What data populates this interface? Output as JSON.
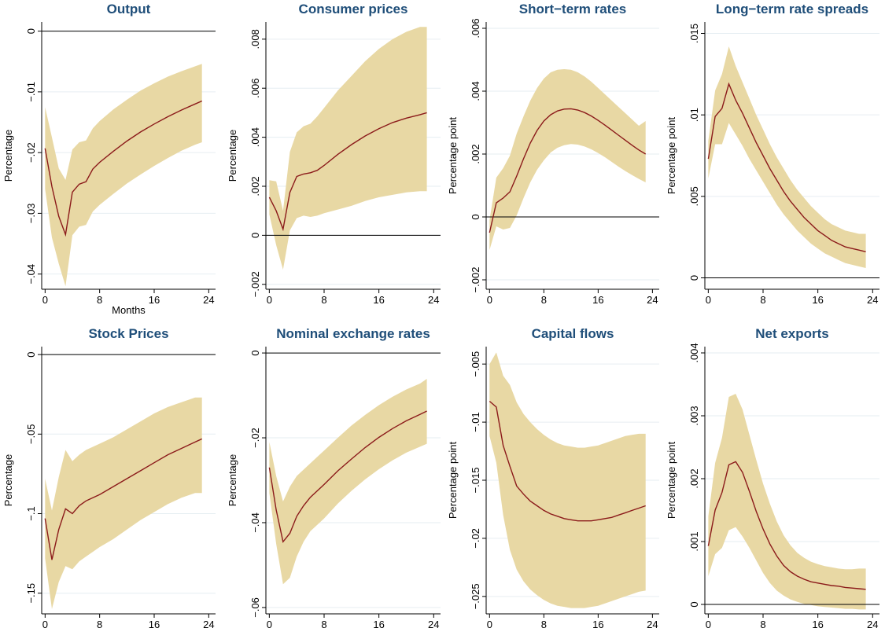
{
  "colors": {
    "band": "#e8d8a4",
    "line": "#8b1a1a",
    "grid": "#e6eef2",
    "title": "#1f4e79"
  },
  "chart_data": [
    {
      "type": "area",
      "title": "Output",
      "xlabel": "Months",
      "ylabel": "Percentage",
      "xticks": [
        0,
        8,
        16,
        24
      ],
      "yticks": [
        -0.04,
        -0.03,
        -0.02,
        -0.01,
        0
      ],
      "ytick_labels": [
        "−.04",
        "−.03",
        "−.02",
        "−.01",
        "0"
      ],
      "xlim": [
        -0.5,
        25
      ],
      "ylim": [
        -0.0425,
        0.0015
      ],
      "zero_line": true,
      "x": [
        0,
        1,
        2,
        3,
        4,
        5,
        6,
        7,
        8,
        10,
        12,
        14,
        16,
        18,
        20,
        22,
        23
      ],
      "mid": [
        -0.0193,
        -0.0256,
        -0.0305,
        -0.0335,
        -0.0265,
        -0.0252,
        -0.0248,
        -0.0227,
        -0.0216,
        -0.0198,
        -0.0181,
        -0.0166,
        -0.0153,
        -0.0141,
        -0.013,
        -0.012,
        -0.0115
      ],
      "upper": [
        -0.0125,
        -0.0175,
        -0.0226,
        -0.0245,
        -0.0195,
        -0.0183,
        -0.018,
        -0.016,
        -0.0148,
        -0.0129,
        -0.0113,
        -0.0098,
        -0.0086,
        -0.0075,
        -0.0066,
        -0.0058,
        -0.0054
      ],
      "lower": [
        -0.026,
        -0.034,
        -0.0383,
        -0.042,
        -0.0336,
        -0.0322,
        -0.0319,
        -0.0297,
        -0.0286,
        -0.0268,
        -0.0251,
        -0.0236,
        -0.0222,
        -0.0209,
        -0.0197,
        -0.0187,
        -0.0183
      ]
    },
    {
      "type": "area",
      "title": "Consumer prices",
      "xlabel": "",
      "ylabel": "Percentage",
      "xticks": [
        0,
        8,
        16,
        24
      ],
      "yticks": [
        -0.002,
        0,
        0.002,
        0.004,
        0.006,
        0.008
      ],
      "ytick_labels": [
        "−.002",
        "0",
        ".002",
        ".004",
        ".006",
        ".008"
      ],
      "xlim": [
        -0.5,
        25
      ],
      "ylim": [
        -0.0022,
        0.0087
      ],
      "zero_line": true,
      "x": [
        0,
        1,
        2,
        3,
        4,
        5,
        6,
        7,
        8,
        10,
        12,
        14,
        16,
        18,
        20,
        22,
        23
      ],
      "mid": [
        0.00155,
        0.001,
        0.00025,
        0.00175,
        0.0024,
        0.0025,
        0.00255,
        0.00265,
        0.00285,
        0.0033,
        0.0037,
        0.00405,
        0.00435,
        0.0046,
        0.00478,
        0.00492,
        0.005
      ],
      "upper": [
        0.00225,
        0.0022,
        0.001,
        0.0034,
        0.0042,
        0.00445,
        0.00455,
        0.00485,
        0.0052,
        0.0059,
        0.0065,
        0.0071,
        0.0076,
        0.008,
        0.0083,
        0.0085,
        0.0085
      ],
      "lower": [
        0.00085,
        -0.0004,
        -0.0014,
        0.0002,
        0.0007,
        0.0008,
        0.00075,
        0.0008,
        0.0009,
        0.00105,
        0.0012,
        0.0014,
        0.00155,
        0.00165,
        0.00175,
        0.0018,
        0.0018
      ]
    },
    {
      "type": "area",
      "title": "Short−term rates",
      "xlabel": "",
      "ylabel": "Percentage point",
      "xticks": [
        0,
        8,
        16,
        24
      ],
      "yticks": [
        -0.002,
        0,
        0.002,
        0.004,
        0.006
      ],
      "ytick_labels": [
        "−.002",
        "0",
        ".002",
        ".004",
        ".006"
      ],
      "xlim": [
        -0.5,
        25
      ],
      "ylim": [
        -0.0023,
        0.0062
      ],
      "zero_line": true,
      "x": [
        0,
        1,
        2,
        3,
        4,
        5,
        6,
        7,
        8,
        9,
        10,
        11,
        12,
        13,
        14,
        15,
        16,
        17,
        18,
        19,
        20,
        21,
        22,
        23
      ],
      "mid": [
        -0.0005,
        0.00045,
        0.0006,
        0.0008,
        0.0013,
        0.00185,
        0.00235,
        0.00275,
        0.00305,
        0.00325,
        0.00337,
        0.00343,
        0.00344,
        0.0034,
        0.00332,
        0.00321,
        0.00307,
        0.00292,
        0.00276,
        0.0026,
        0.00244,
        0.00228,
        0.00213,
        0.002
      ],
      "upper": [
        -0.0001,
        0.00125,
        0.00155,
        0.00195,
        0.00265,
        0.0032,
        0.0037,
        0.0041,
        0.0044,
        0.0046,
        0.00468,
        0.0047,
        0.00468,
        0.0046,
        0.00447,
        0.0043,
        0.0041,
        0.0039,
        0.0037,
        0.0035,
        0.0033,
        0.0031,
        0.0029,
        0.00305
      ],
      "lower": [
        -0.00105,
        -0.0003,
        -0.0004,
        -0.00035,
        5e-05,
        0.0006,
        0.0011,
        0.0015,
        0.0018,
        0.00205,
        0.0022,
        0.00228,
        0.00232,
        0.0023,
        0.00224,
        0.00215,
        0.00203,
        0.0019,
        0.00175,
        0.0016,
        0.00146,
        0.00133,
        0.00121,
        0.0011
      ]
    },
    {
      "type": "area",
      "title": "Long−term rate spreads",
      "xlabel": "",
      "ylabel": "Percentage point",
      "xticks": [
        0,
        8,
        16,
        24
      ],
      "yticks": [
        0,
        0.005,
        0.01,
        0.015
      ],
      "ytick_labels": [
        "0",
        ".005",
        ".01",
        ".015"
      ],
      "xlim": [
        -0.5,
        25
      ],
      "ylim": [
        -0.0007,
        0.0157
      ],
      "zero_line": true,
      "x": [
        0,
        1,
        2,
        3,
        4,
        5,
        6,
        7,
        8,
        9,
        10,
        11,
        12,
        13,
        14,
        15,
        16,
        17,
        18,
        19,
        20,
        21,
        22,
        23
      ],
      "mid": [
        0.0073,
        0.0099,
        0.0104,
        0.0119,
        0.0109,
        0.0101,
        0.0092,
        0.0083,
        0.0075,
        0.0067,
        0.006,
        0.0053,
        0.0047,
        0.0042,
        0.0037,
        0.0033,
        0.0029,
        0.0026,
        0.0023,
        0.0021,
        0.0019,
        0.0018,
        0.0017,
        0.0016
      ],
      "upper": [
        0.0084,
        0.0115,
        0.0125,
        0.0142,
        0.013,
        0.012,
        0.011,
        0.01,
        0.0091,
        0.0082,
        0.0074,
        0.0067,
        0.006,
        0.0054,
        0.0049,
        0.0044,
        0.004,
        0.0036,
        0.0033,
        0.0031,
        0.0029,
        0.0028,
        0.0027,
        0.0027
      ],
      "lower": [
        0.0061,
        0.0082,
        0.0082,
        0.0095,
        0.0088,
        0.0081,
        0.0073,
        0.0066,
        0.0059,
        0.0052,
        0.0045,
        0.0039,
        0.0034,
        0.0029,
        0.0025,
        0.0021,
        0.0018,
        0.0015,
        0.0013,
        0.0011,
        0.0009,
        0.0008,
        0.0007,
        0.0006
      ]
    },
    {
      "type": "area",
      "title": "Stock Prices",
      "xlabel": "",
      "ylabel": "Percentage",
      "xticks": [
        0,
        8,
        16,
        24
      ],
      "yticks": [
        -0.15,
        -0.1,
        -0.05,
        0
      ],
      "ytick_labels": [
        "−.15",
        "−.1",
        "−.05",
        "0"
      ],
      "xlim": [
        -0.5,
        25
      ],
      "ylim": [
        -0.163,
        0.005
      ],
      "zero_line": true,
      "x": [
        0,
        1,
        2,
        3,
        4,
        5,
        6,
        7,
        8,
        10,
        12,
        14,
        16,
        18,
        20,
        22,
        23
      ],
      "mid": [
        -0.103,
        -0.129,
        -0.11,
        -0.097,
        -0.1,
        -0.095,
        -0.092,
        -0.09,
        -0.088,
        -0.083,
        -0.078,
        -0.073,
        -0.068,
        -0.063,
        -0.059,
        -0.055,
        -0.053
      ],
      "upper": [
        -0.078,
        -0.098,
        -0.077,
        -0.06,
        -0.067,
        -0.063,
        -0.06,
        -0.058,
        -0.056,
        -0.052,
        -0.047,
        -0.042,
        -0.037,
        -0.033,
        -0.03,
        -0.027,
        -0.027
      ],
      "lower": [
        -0.128,
        -0.16,
        -0.143,
        -0.133,
        -0.135,
        -0.13,
        -0.127,
        -0.124,
        -0.121,
        -0.116,
        -0.11,
        -0.104,
        -0.099,
        -0.094,
        -0.09,
        -0.087,
        -0.087
      ]
    },
    {
      "type": "area",
      "title": "Nominal exchange rates",
      "xlabel": "",
      "ylabel": "Percentage",
      "xticks": [
        0,
        8,
        16,
        24
      ],
      "yticks": [
        -0.06,
        -0.04,
        -0.02,
        0
      ],
      "ytick_labels": [
        "−.06",
        "−.04",
        "−.02",
        "0"
      ],
      "xlim": [
        -0.5,
        25
      ],
      "ylim": [
        -0.0615,
        0.0015
      ],
      "zero_line": true,
      "x": [
        0,
        1,
        2,
        3,
        4,
        5,
        6,
        7,
        8,
        10,
        12,
        14,
        16,
        18,
        20,
        22,
        23
      ],
      "mid": [
        -0.027,
        -0.037,
        -0.0445,
        -0.0425,
        -0.0385,
        -0.036,
        -0.034,
        -0.0325,
        -0.031,
        -0.0278,
        -0.025,
        -0.0223,
        -0.0199,
        -0.0178,
        -0.016,
        -0.0145,
        -0.0137
      ],
      "upper": [
        -0.021,
        -0.029,
        -0.035,
        -0.0315,
        -0.029,
        -0.0275,
        -0.026,
        -0.0245,
        -0.023,
        -0.02,
        -0.0171,
        -0.0146,
        -0.0123,
        -0.0103,
        -0.0086,
        -0.0072,
        -0.0061
      ],
      "lower": [
        -0.033,
        -0.045,
        -0.0545,
        -0.053,
        -0.048,
        -0.0445,
        -0.042,
        -0.0405,
        -0.039,
        -0.0355,
        -0.0325,
        -0.0298,
        -0.0274,
        -0.0253,
        -0.0235,
        -0.0221,
        -0.0214
      ]
    },
    {
      "type": "area",
      "title": "Capital flows",
      "xlabel": "",
      "ylabel": "Percentage point",
      "xticks": [
        0,
        8,
        16,
        24
      ],
      "yticks": [
        -0.025,
        -0.02,
        -0.015,
        -0.01,
        -0.005
      ],
      "ytick_labels": [
        "−.025",
        "−.02",
        "−.015",
        "−.01",
        "−.005"
      ],
      "xlim": [
        -0.5,
        25
      ],
      "ylim": [
        -0.0265,
        -0.0035
      ],
      "zero_line": false,
      "x": [
        0,
        1,
        2,
        3,
        4,
        5,
        6,
        7,
        8,
        9,
        10,
        11,
        12,
        13,
        14,
        15,
        16,
        17,
        18,
        19,
        20,
        21,
        22,
        23
      ],
      "mid": [
        -0.0082,
        -0.0087,
        -0.012,
        -0.0138,
        -0.0155,
        -0.0162,
        -0.0168,
        -0.0172,
        -0.0176,
        -0.0179,
        -0.0181,
        -0.0183,
        -0.0184,
        -0.0185,
        -0.0185,
        -0.0185,
        -0.0184,
        -0.0183,
        -0.0182,
        -0.018,
        -0.0178,
        -0.0176,
        -0.0174,
        -0.0172
      ],
      "upper": [
        -0.005,
        -0.004,
        -0.006,
        -0.0068,
        -0.0083,
        -0.0093,
        -0.01,
        -0.0106,
        -0.0111,
        -0.0115,
        -0.0118,
        -0.012,
        -0.0121,
        -0.0122,
        -0.0122,
        -0.0121,
        -0.012,
        -0.0118,
        -0.0116,
        -0.0114,
        -0.0112,
        -0.0111,
        -0.011,
        -0.011
      ],
      "lower": [
        -0.0112,
        -0.0135,
        -0.018,
        -0.021,
        -0.0227,
        -0.0237,
        -0.0244,
        -0.0249,
        -0.0253,
        -0.0256,
        -0.0258,
        -0.0259,
        -0.026,
        -0.026,
        -0.026,
        -0.0259,
        -0.0258,
        -0.0256,
        -0.0254,
        -0.0252,
        -0.025,
        -0.0248,
        -0.0246,
        -0.0245
      ]
    },
    {
      "type": "area",
      "title": "Net exports",
      "xlabel": "",
      "ylabel": "Percentage point",
      "xticks": [
        0,
        8,
        16,
        24
      ],
      "yticks": [
        0,
        0.001,
        0.002,
        0.003,
        0.004
      ],
      "ytick_labels": [
        "0",
        ".001",
        ".002",
        ".003",
        ".004"
      ],
      "xlim": [
        -0.5,
        25
      ],
      "ylim": [
        -0.00015,
        0.0041
      ],
      "zero_line": true,
      "x": [
        0,
        1,
        2,
        3,
        4,
        5,
        6,
        7,
        8,
        9,
        10,
        11,
        12,
        13,
        14,
        15,
        16,
        17,
        18,
        19,
        20,
        21,
        22,
        23
      ],
      "mid": [
        0.00093,
        0.0015,
        0.00178,
        0.00222,
        0.00227,
        0.0021,
        0.0018,
        0.00148,
        0.0012,
        0.00096,
        0.00077,
        0.00062,
        0.00052,
        0.00045,
        0.0004,
        0.00036,
        0.00034,
        0.00032,
        0.0003,
        0.00029,
        0.00027,
        0.00026,
        0.00025,
        0.00024
      ],
      "upper": [
        0.0014,
        0.00225,
        0.00265,
        0.0033,
        0.00335,
        0.0031,
        0.0027,
        0.0023,
        0.00192,
        0.0016,
        0.00132,
        0.0011,
        0.00094,
        0.00082,
        0.00074,
        0.00068,
        0.00064,
        0.00061,
        0.00059,
        0.00057,
        0.00056,
        0.00056,
        0.00057,
        0.00057
      ],
      "lower": [
        0.00045,
        0.0008,
        0.0009,
        0.00118,
        0.00123,
        0.00108,
        0.0009,
        0.0007,
        0.0005,
        0.00034,
        0.00022,
        0.00014,
        8e-05,
        4e-05,
        1e-05,
        -1e-05,
        -3e-05,
        -4e-05,
        -5e-05,
        -6e-05,
        -7e-05,
        -7e-05,
        -8e-05,
        -8e-05
      ]
    }
  ]
}
